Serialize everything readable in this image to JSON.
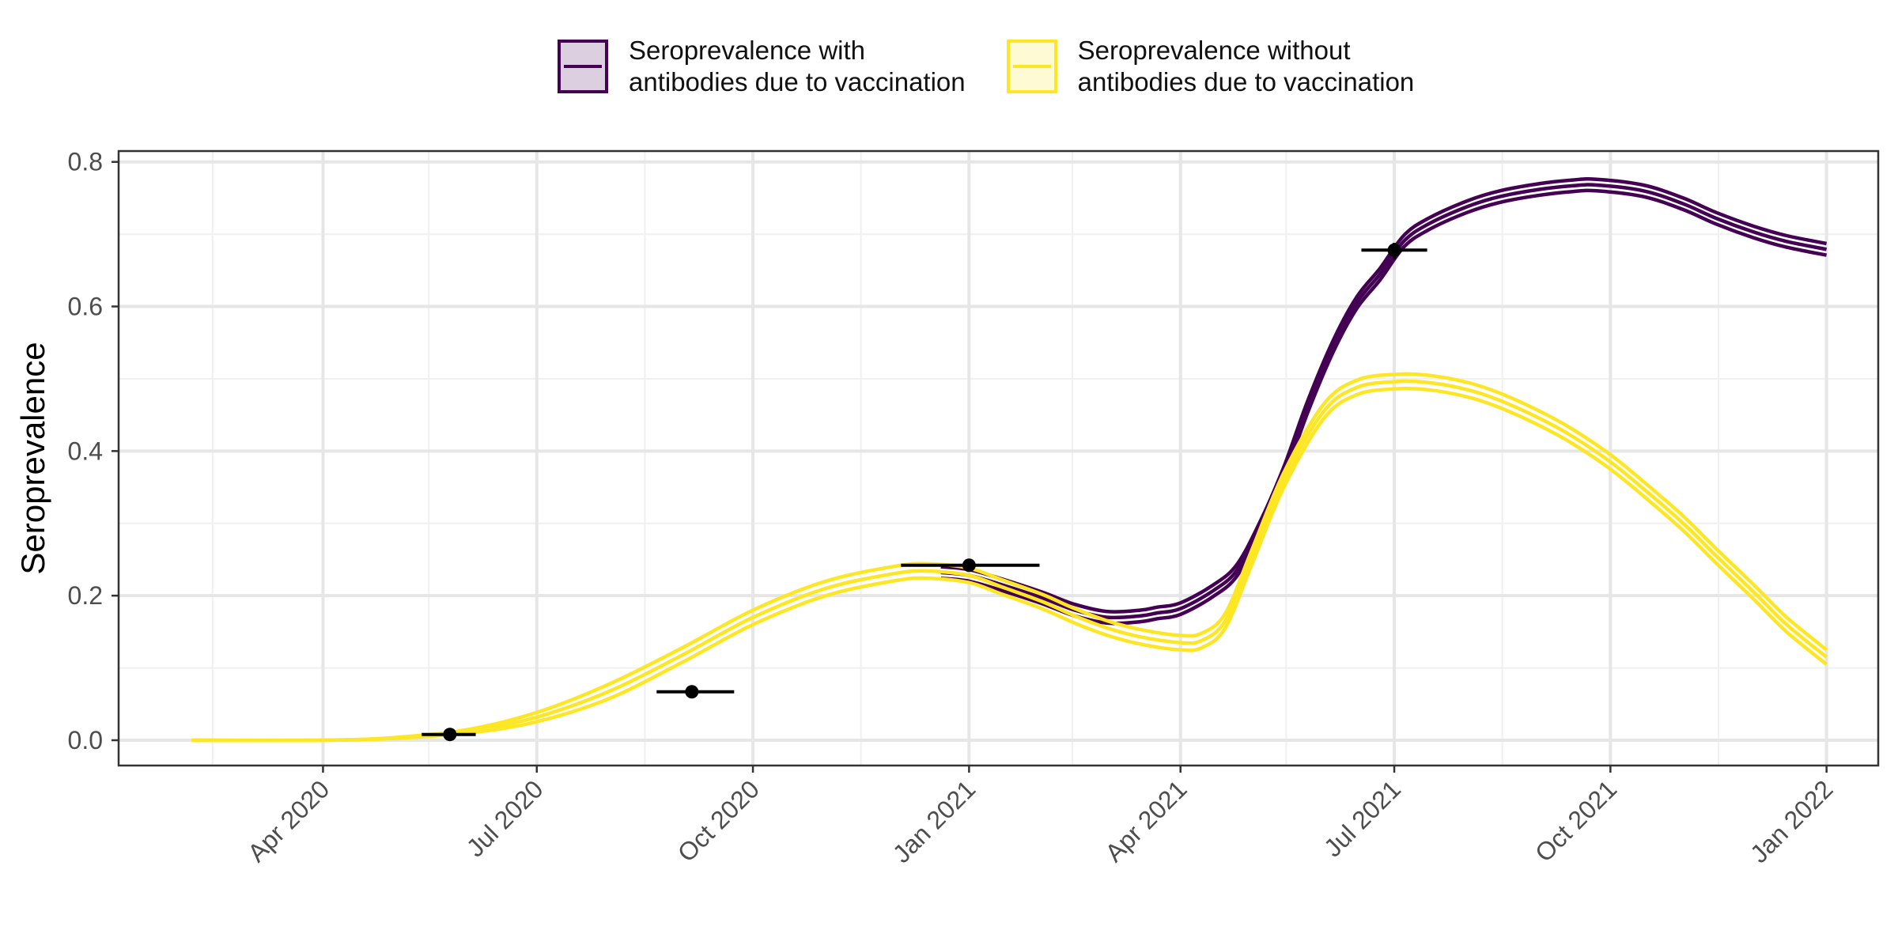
{
  "legend": {
    "items": [
      {
        "label": "Seroprevalence with\nantibodies due to vaccination",
        "color": "#440154",
        "fill": "#dccfe0"
      },
      {
        "label": "Seroprevalence without\nantibodies due to vaccination",
        "color": "#fde725",
        "fill": "#fefad4"
      }
    ],
    "position": "top"
  },
  "chart_data": {
    "type": "line",
    "title": "",
    "xlabel": "",
    "ylabel": "Seroprevalence",
    "xlim": [
      "2020-01-05",
      "2022-01-23"
    ],
    "ylim": [
      -0.035,
      0.815
    ],
    "grid": true,
    "x_ticks": [
      {
        "date": "2020-04-01",
        "label": "Apr 2020"
      },
      {
        "date": "2020-07-01",
        "label": "Jul 2020"
      },
      {
        "date": "2020-10-01",
        "label": "Oct 2020"
      },
      {
        "date": "2021-01-01",
        "label": "Jan 2021"
      },
      {
        "date": "2021-04-01",
        "label": "Apr 2021"
      },
      {
        "date": "2021-07-01",
        "label": "Jul 2021"
      },
      {
        "date": "2021-10-01",
        "label": "Oct 2021"
      },
      {
        "date": "2022-01-01",
        "label": "Jan 2022"
      }
    ],
    "x_minor_ticks": [
      "2020-02-14",
      "2020-05-16",
      "2020-08-16",
      "2020-11-16",
      "2021-02-14",
      "2021-05-16",
      "2021-08-16",
      "2021-11-16"
    ],
    "y_ticks": [
      {
        "value": 0.0,
        "label": "0.0"
      },
      {
        "value": 0.2,
        "label": "0.2"
      },
      {
        "value": 0.4,
        "label": "0.4"
      },
      {
        "value": 0.6,
        "label": "0.6"
      },
      {
        "value": 0.8,
        "label": "0.8"
      }
    ],
    "y_minor_ticks": [
      0.1,
      0.3,
      0.5,
      0.7
    ],
    "series": [
      {
        "name": "Seroprevalence with antibodies due to vaccination",
        "color": "#440154",
        "band_offsets": [
          -0.008,
          0.0,
          0.008
        ],
        "points": [
          [
            "2020-12-20",
            0.232
          ],
          [
            "2021-01-01",
            0.228
          ],
          [
            "2021-01-15",
            0.215
          ],
          [
            "2021-02-01",
            0.197
          ],
          [
            "2021-02-15",
            0.18
          ],
          [
            "2021-03-01",
            0.17
          ],
          [
            "2021-03-15",
            0.172
          ],
          [
            "2021-03-22",
            0.176
          ],
          [
            "2021-04-01",
            0.182
          ],
          [
            "2021-04-15",
            0.207
          ],
          [
            "2021-04-25",
            0.235
          ],
          [
            "2021-05-05",
            0.295
          ],
          [
            "2021-05-15",
            0.37
          ],
          [
            "2021-05-25",
            0.46
          ],
          [
            "2021-06-05",
            0.545
          ],
          [
            "2021-06-15",
            0.605
          ],
          [
            "2021-06-25",
            0.645
          ],
          [
            "2021-07-05",
            0.69
          ],
          [
            "2021-07-15",
            0.713
          ],
          [
            "2021-08-01",
            0.738
          ],
          [
            "2021-08-15",
            0.752
          ],
          [
            "2021-09-01",
            0.762
          ],
          [
            "2021-09-15",
            0.767
          ],
          [
            "2021-09-25",
            0.768
          ],
          [
            "2021-10-15",
            0.76
          ],
          [
            "2021-11-01",
            0.742
          ],
          [
            "2021-11-15",
            0.722
          ],
          [
            "2021-12-01",
            0.703
          ],
          [
            "2021-12-15",
            0.69
          ],
          [
            "2022-01-01",
            0.679
          ]
        ]
      },
      {
        "name": "Seroprevalence without antibodies due to vaccination",
        "color": "#fde725",
        "band_offsets": [
          -0.01,
          0.0,
          0.01
        ],
        "points": [
          [
            "2020-02-05",
            0.0
          ],
          [
            "2020-04-01",
            0.0
          ],
          [
            "2020-05-01",
            0.003
          ],
          [
            "2020-06-01",
            0.012
          ],
          [
            "2020-07-01",
            0.032
          ],
          [
            "2020-08-01",
            0.068
          ],
          [
            "2020-09-01",
            0.118
          ],
          [
            "2020-10-01",
            0.17
          ],
          [
            "2020-11-01",
            0.21
          ],
          [
            "2020-12-01",
            0.231
          ],
          [
            "2020-12-15",
            0.234
          ],
          [
            "2021-01-01",
            0.228
          ],
          [
            "2021-01-15",
            0.212
          ],
          [
            "2021-02-01",
            0.192
          ],
          [
            "2021-02-15",
            0.172
          ],
          [
            "2021-03-01",
            0.155
          ],
          [
            "2021-03-15",
            0.143
          ],
          [
            "2021-04-01",
            0.135
          ],
          [
            "2021-04-10",
            0.138
          ],
          [
            "2021-04-20",
            0.165
          ],
          [
            "2021-05-01",
            0.25
          ],
          [
            "2021-05-15",
            0.36
          ],
          [
            "2021-06-01",
            0.455
          ],
          [
            "2021-06-15",
            0.488
          ],
          [
            "2021-07-01",
            0.496
          ],
          [
            "2021-07-15",
            0.495
          ],
          [
            "2021-08-01",
            0.485
          ],
          [
            "2021-08-15",
            0.47
          ],
          [
            "2021-09-01",
            0.445
          ],
          [
            "2021-09-15",
            0.42
          ],
          [
            "2021-10-01",
            0.385
          ],
          [
            "2021-10-15",
            0.348
          ],
          [
            "2021-11-01",
            0.3
          ],
          [
            "2021-11-15",
            0.255
          ],
          [
            "2021-12-01",
            0.205
          ],
          [
            "2021-12-15",
            0.16
          ],
          [
            "2022-01-01",
            0.115
          ]
        ]
      }
    ],
    "observations": [
      {
        "date": "2020-05-25",
        "value": 0.008,
        "x_start": "2020-05-13",
        "x_end": "2020-06-05"
      },
      {
        "date": "2020-09-05",
        "value": 0.067,
        "x_start": "2020-08-21",
        "x_end": "2020-09-23"
      },
      {
        "date": "2021-01-01",
        "value": 0.242,
        "x_start": "2020-12-03",
        "x_end": "2021-01-31",
        "y_low": 0.236,
        "y_high": 0.248
      },
      {
        "date": "2021-07-01",
        "value": 0.678,
        "x_start": "2021-06-17",
        "x_end": "2021-07-15",
        "y_low": 0.665,
        "y_high": 0.688
      }
    ]
  }
}
